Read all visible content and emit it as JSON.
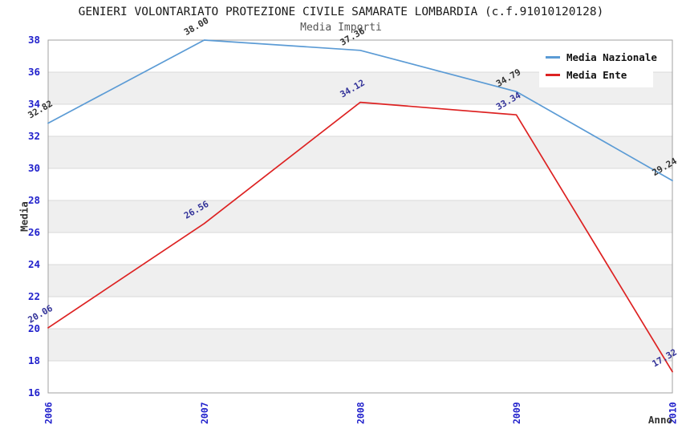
{
  "chart_data": {
    "type": "line",
    "title": "GENIERI VOLONTARIATO PROTEZIONE CIVILE SAMARATE LOMBARDIA (c.f.91010120128)",
    "subtitle": "Media Importi",
    "xlabel": "Anno",
    "ylabel": "Media",
    "categories": [
      "2006",
      "2007",
      "2008",
      "2009",
      "2010"
    ],
    "series": [
      {
        "name": "Media Nazionale",
        "color": "#5b9bd5",
        "label_color": "#333333",
        "values": [
          32.82,
          38.0,
          37.36,
          34.79,
          29.24
        ]
      },
      {
        "name": "Media Ente",
        "color": "#dd2222",
        "label_color": "#333399",
        "values": [
          20.06,
          26.56,
          34.12,
          33.34,
          17.32
        ]
      }
    ],
    "ylim": [
      16,
      38
    ],
    "ytick_step": 2,
    "grid": "horizontal-bands",
    "band_colors": [
      "#ffffff",
      "#efefef"
    ],
    "gridline_color": "#d8d8d8",
    "border_color": "#a0a0a0",
    "axis_tick_color": "#2222cc",
    "legend_position": "top-right"
  }
}
